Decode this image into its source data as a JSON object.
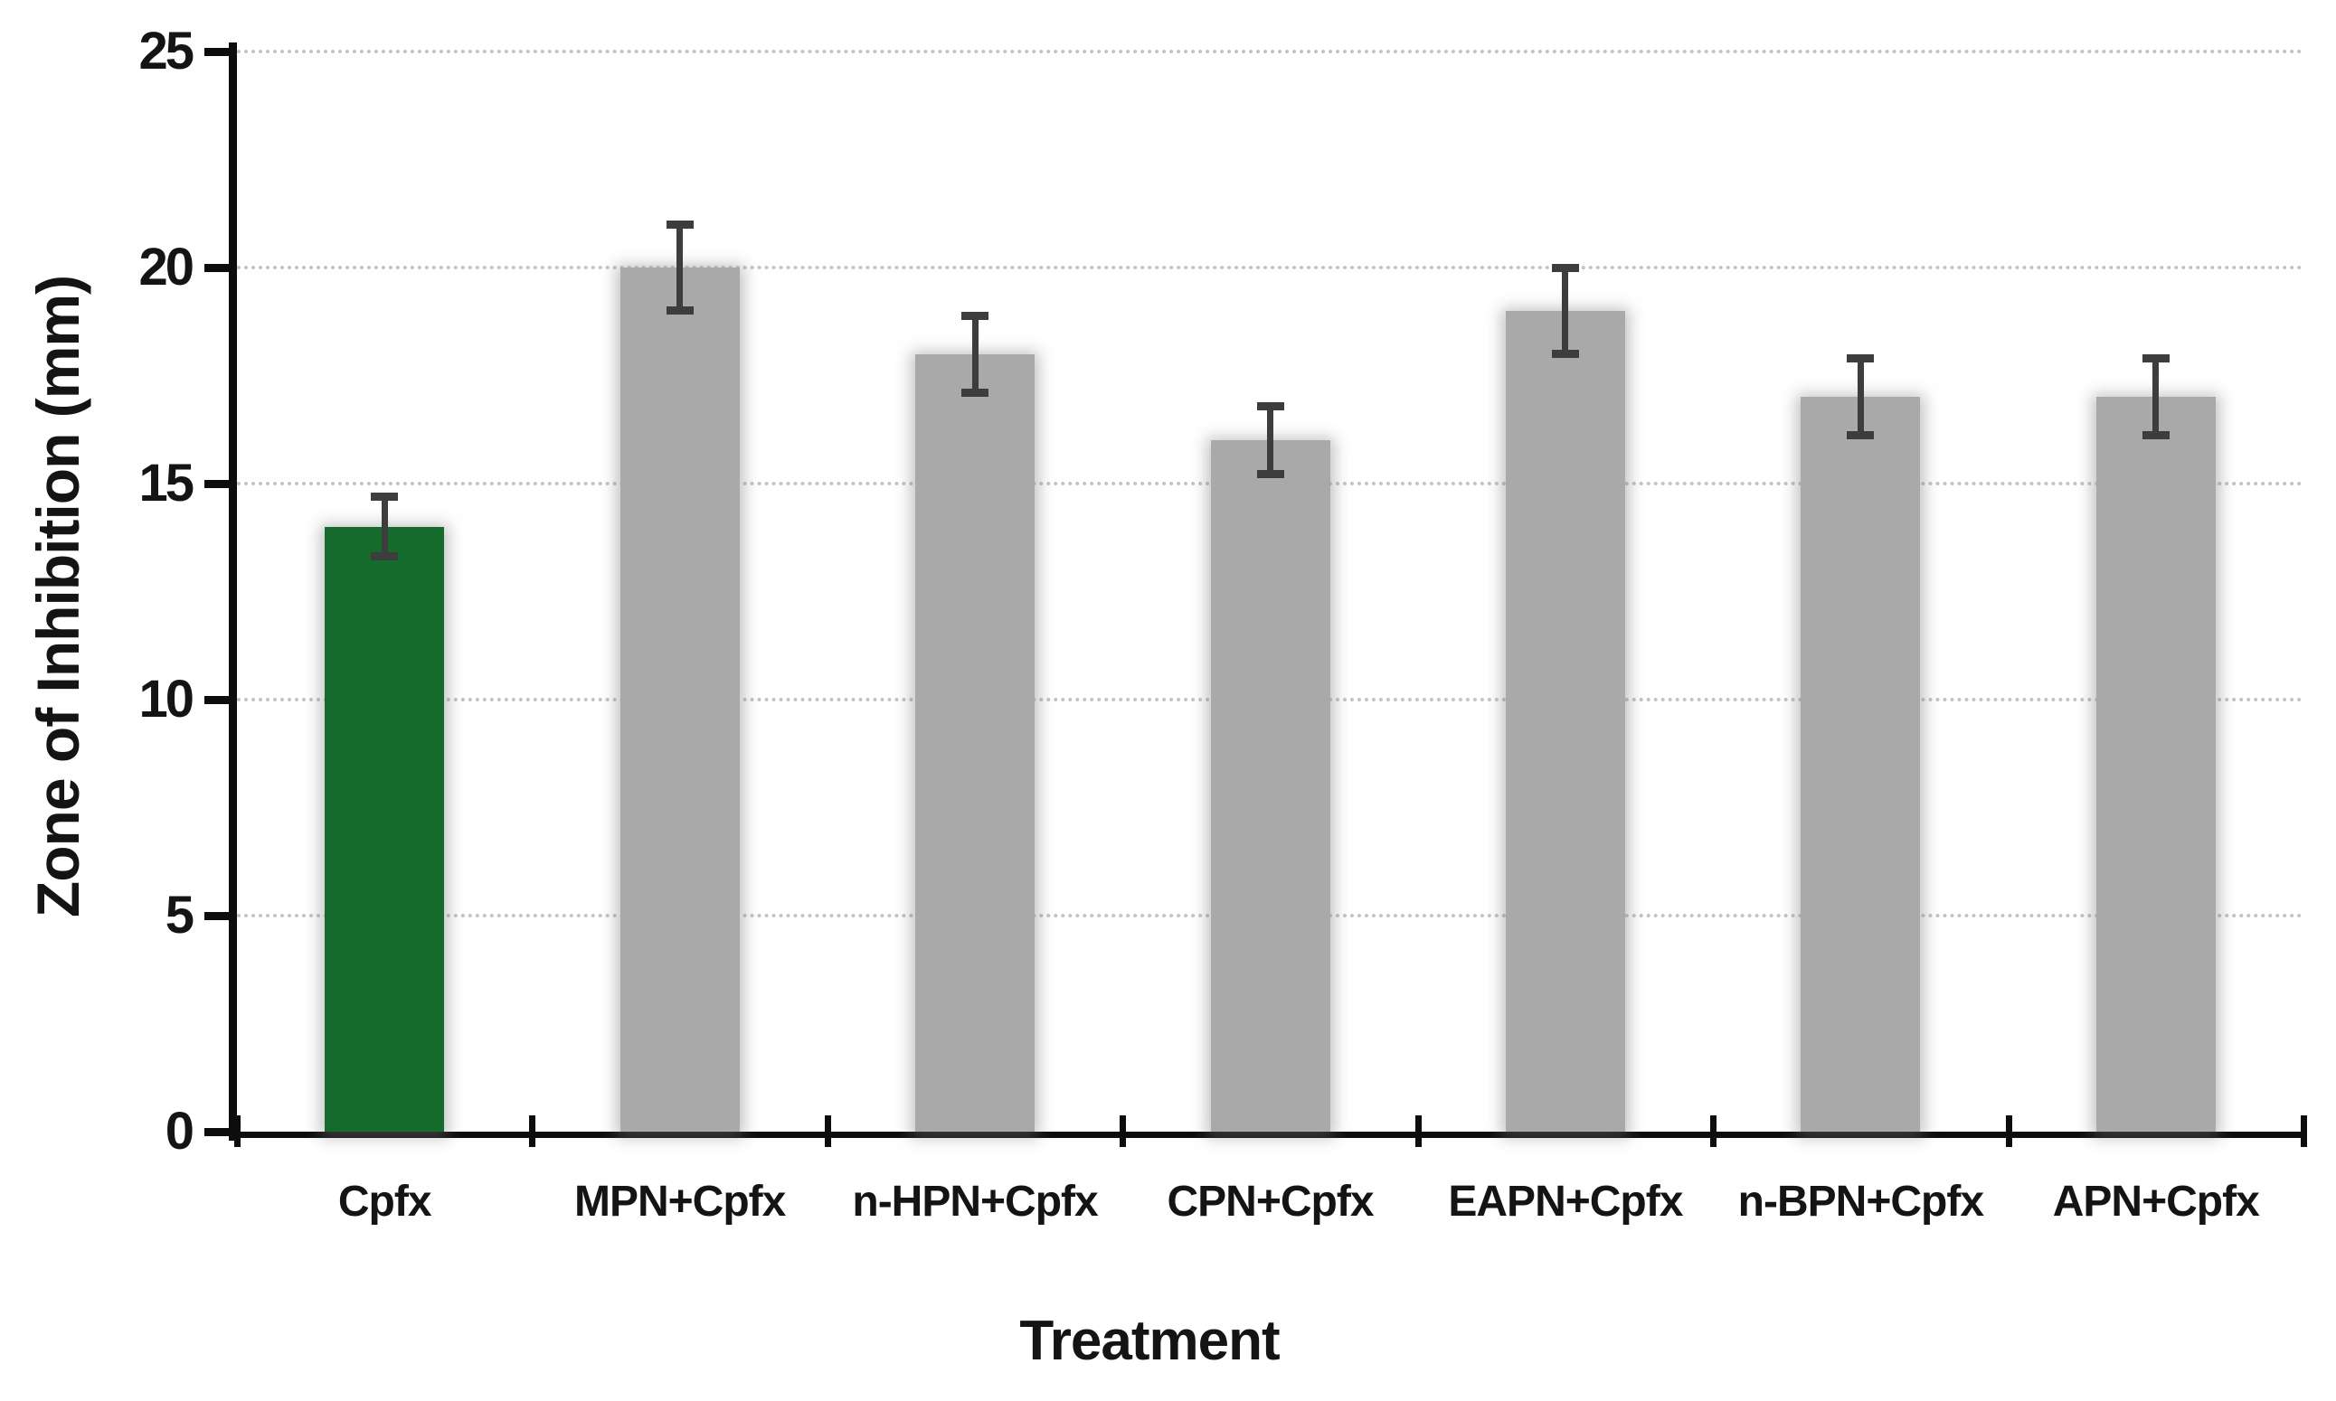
{
  "chart_data": {
    "type": "bar",
    "title": "",
    "xlabel": "Treatment",
    "ylabel": "Zone of Inhibition (mm)",
    "ylim": [
      0,
      25
    ],
    "yticks": [
      0,
      5,
      10,
      15,
      20,
      25
    ],
    "grid": "horizontal dotted gridlines every 5 units",
    "legend_position": "none",
    "categories": [
      "Cpfx",
      "MPN+Cpfx",
      "n-HPN+Cpfx",
      "CPN+Cpfx",
      "EAPN+Cpfx",
      "n-BPN+Cpfx",
      "APN+Cpfx"
    ],
    "series": [
      {
        "name": "Zone of Inhibition (mm)",
        "values": [
          14,
          20,
          18,
          16,
          19,
          17,
          17
        ],
        "error_bars": [
          0.7,
          1.0,
          0.9,
          0.8,
          1.0,
          0.9,
          0.9
        ]
      }
    ],
    "bar_colors": [
      "#156b2c",
      "#a9a9a9",
      "#a9a9a9",
      "#a9a9a9",
      "#a9a9a9",
      "#a9a9a9",
      "#a9a9a9"
    ]
  },
  "style": {
    "highlight_bar_color": "#156b2c",
    "default_bar_color": "#a9a9a9",
    "error_bar_color": "#3d3d3d",
    "gridline_color": "#c4c4c4",
    "axis_color": "#0d0d0d",
    "text_color": "#141414",
    "background_color": "#ffffff"
  }
}
